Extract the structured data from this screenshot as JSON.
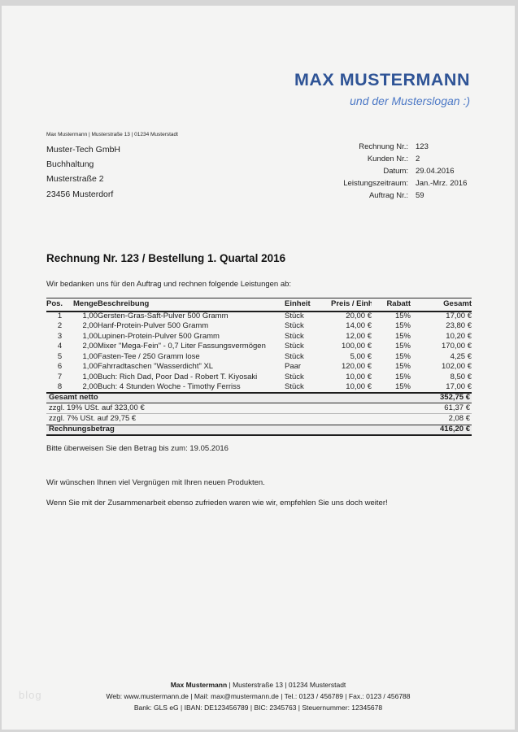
{
  "brand": {
    "name": "MAX MUSTERMANN",
    "slogan": "und der Musterslogan :)",
    "name_color": "#2f5496",
    "slogan_color": "#4d79c6"
  },
  "sender_line": "Max Mustermann | Musterstraße 13 | 01234 Musterstadt",
  "recipient": {
    "lines": [
      "Muster-Tech GmbH",
      "Buchhaltung",
      "Musterstraße 2",
      "23456 Musterdorf"
    ]
  },
  "meta": {
    "rows": [
      {
        "label": "Rechnung Nr.:",
        "value": "123"
      },
      {
        "label": "Kunden Nr.:",
        "value": "2"
      },
      {
        "label": "Datum:",
        "value": "29.04.2016"
      },
      {
        "label": "Leistungszeitraum:",
        "value": "Jan.-Mrz. 2016"
      },
      {
        "label": "Auftrag Nr.:",
        "value": "59"
      }
    ]
  },
  "title": "Rechnung Nr. 123 / Bestellung 1. Quartal 2016",
  "intro": "Wir bedanken uns für den Auftrag und rechnen folgende Leistungen ab:",
  "table": {
    "headers": [
      "Pos.",
      "Menge",
      "Beschreibung",
      "Einheit",
      "Preis / Einh.",
      "Rabatt",
      "Gesamt"
    ],
    "rows": [
      [
        "1",
        "1,00",
        "Gersten-Gras-Saft-Pulver 500 Gramm",
        "Stück",
        "20,00 €",
        "15%",
        "17,00 €"
      ],
      [
        "2",
        "2,00",
        "Hanf-Protein-Pulver 500 Gramm",
        "Stück",
        "14,00 €",
        "15%",
        "23,80 €"
      ],
      [
        "3",
        "1,00",
        "Lupinen-Protein-Pulver 500 Gramm",
        "Stück",
        "12,00 €",
        "15%",
        "10,20 €"
      ],
      [
        "4",
        "2,00",
        "Mixer \"Mega-Fein\" - 0,7 Liter Fassungsvermögen",
        "Stück",
        "100,00 €",
        "15%",
        "170,00 €"
      ],
      [
        "5",
        "1,00",
        "Fasten-Tee / 250 Gramm lose",
        "Stück",
        "5,00 €",
        "15%",
        "4,25 €"
      ],
      [
        "6",
        "1,00",
        "Fahrradtaschen \"Wasserdicht\" XL",
        "Paar",
        "120,00 €",
        "15%",
        "102,00 €"
      ],
      [
        "7",
        "1,00",
        "Buch: Rich Dad, Poor Dad - Robert T. Kiyosaki",
        "Stück",
        "10,00 €",
        "15%",
        "8,50 €"
      ],
      [
        "8",
        "2,00",
        "Buch: 4 Stunden Woche - Timothy Ferriss",
        "Stück",
        "10,00 €",
        "15%",
        "17,00 €"
      ]
    ],
    "summary": [
      {
        "label": "Gesamt netto",
        "value": "352,75 €"
      },
      {
        "label": "zzgl. 19% USt. auf 323,00 €",
        "value": "61,37 €"
      },
      {
        "label": "zzgl. 7% USt. auf 29,75 €",
        "value": "2,08 €"
      },
      {
        "label": "Rechnungsbetrag",
        "value": "416,20 €"
      }
    ]
  },
  "notes": {
    "payment": "Bitte überweisen Sie den Betrag bis zum: 19.05.2016",
    "thanks": "Wir wünschen Ihnen viel Vergnügen mit Ihren neuen Produkten.",
    "referral": "Wenn Sie mit der Zusammenarbeit ebenso zufrieden waren wie wir, empfehlen Sie uns doch weiter!"
  },
  "footer": {
    "line1_name": "Max Mustermann",
    "line1_rest": " | Musterstraße 13 | 01234 Musterstadt",
    "line2": "Web: www.mustermann.de | Mail: max@mustermann.de | Tel.: 0123 / 456789 | Fax.: 0123 / 456788",
    "line3": "Bank: GLS eG | IBAN: DE123456789 | BIC: 2345763 | Steuernummer: 12345678"
  },
  "watermark": "blog"
}
